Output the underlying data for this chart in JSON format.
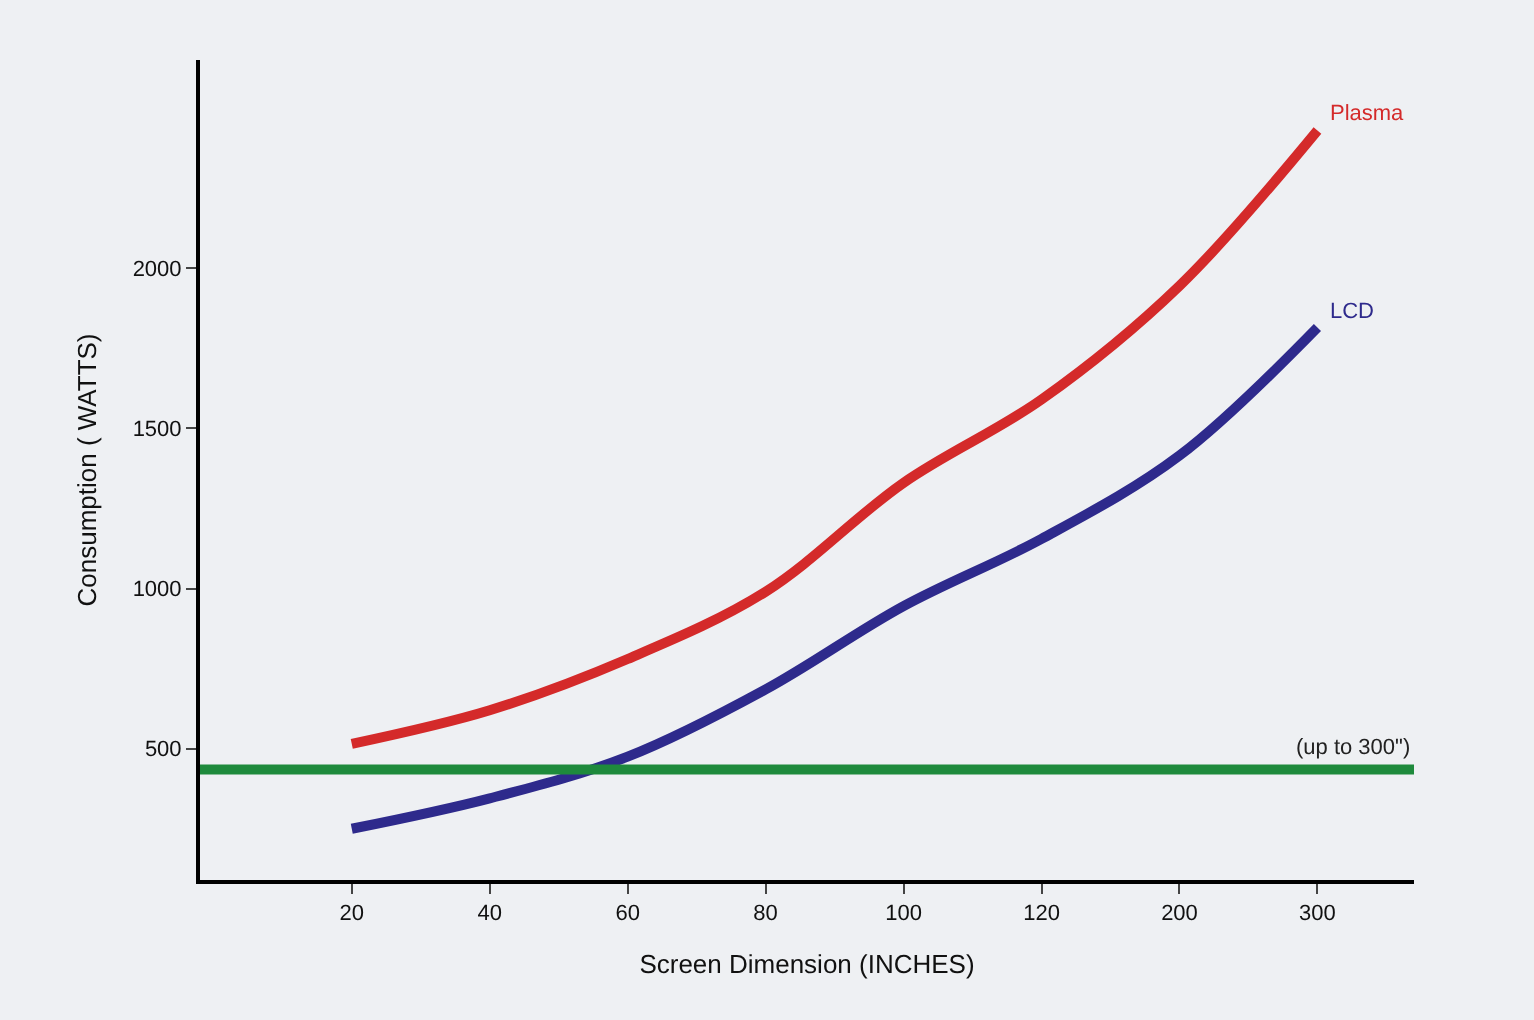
{
  "chart_data": {
    "type": "line",
    "xlabel": "Screen Dimension (INCHES)",
    "ylabel": "Consumption ( WATTS)",
    "categories": [
      "20",
      "40",
      "60",
      "80",
      "100",
      "120",
      "200",
      "300"
    ],
    "series": [
      {
        "name": "Plasma",
        "color": "#d42a2a",
        "values": [
          515,
          620,
          780,
          990,
          1330,
          1590,
          1945,
          2430
        ]
      },
      {
        "name": "LCD",
        "color": "#2e2a8c",
        "values": [
          250,
          345,
          475,
          685,
          945,
          1155,
          1415,
          1815
        ]
      }
    ],
    "ylim": [
      90,
      2650
    ],
    "yticks": [
      500,
      1000,
      1500,
      2000
    ],
    "ref_lines": [
      {
        "axis": "y",
        "value": 435,
        "label": "(up to 300\")",
        "color": "#1e8a3c"
      }
    ],
    "grid": false,
    "legend": false,
    "marker": "none",
    "line_style": "solid"
  }
}
